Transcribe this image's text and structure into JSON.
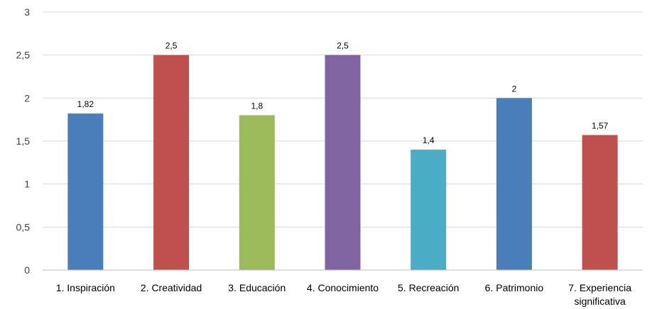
{
  "chart_data": {
    "type": "bar",
    "categories": [
      [
        "1. Inspiración"
      ],
      [
        "2. Creatividad"
      ],
      [
        "3. Educación"
      ],
      [
        "4. Conocimiento"
      ],
      [
        "5. Recreación"
      ],
      [
        "6. Patrimonio"
      ],
      [
        "7. Experiencia",
        "significativa"
      ]
    ],
    "values": [
      1.82,
      2.5,
      1.8,
      2.5,
      1.4,
      2,
      1.57
    ],
    "value_labels": [
      "1,82",
      "2,5",
      "1,8",
      "2,5",
      "1,4",
      "2",
      "1,57"
    ],
    "colors": [
      "#4a7ebb",
      "#c0504d",
      "#9bbb59",
      "#8064a2",
      "#4bacc6",
      "#4a7ebb",
      "#c0504d"
    ],
    "ylim": [
      0,
      3
    ],
    "yticks": [
      0,
      0.5,
      1,
      1.5,
      2,
      2.5,
      3
    ],
    "ytick_labels": [
      "0",
      "0,5",
      "1",
      "1,5",
      "2",
      "2,5",
      "3"
    ],
    "grid": true,
    "legend": "none"
  }
}
